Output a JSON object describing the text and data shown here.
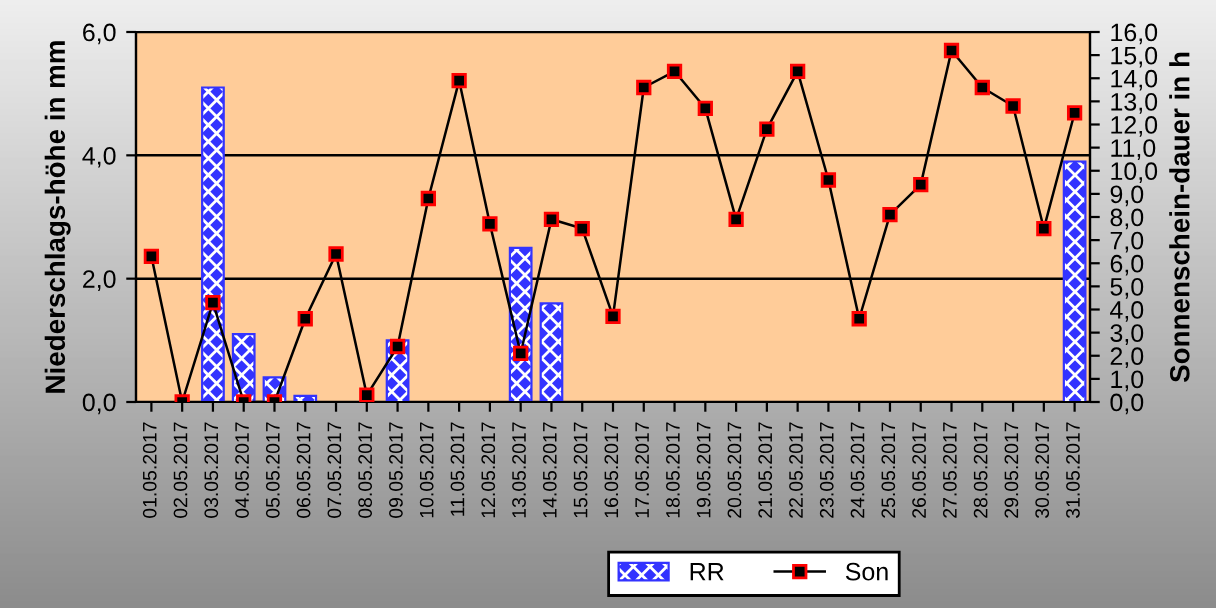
{
  "chart_data": {
    "type": "bar",
    "ylabel": "Niederschlags-höhe in mm",
    "y2label": "Sonnenschein-dauer in h",
    "categories": [
      "01.05.2017",
      "02.05.2017",
      "03.05.2017",
      "04.05.2017",
      "05.05.2017",
      "06.05.2017",
      "07.05.2017",
      "08.05.2017",
      "09.05.2017",
      "10.05.2017",
      "11.05.2017",
      "12.05.2017",
      "13.05.2017",
      "14.05.2017",
      "15.05.2017",
      "16.05.2017",
      "17.05.2017",
      "18.05.2017",
      "19.05.2017",
      "20.05.2017",
      "21.05.2017",
      "22.05.2017",
      "23.05.2017",
      "24.05.2017",
      "25.05.2017",
      "26.05.2017",
      "27.05.2017",
      "28.05.2017",
      "29.05.2017",
      "30.05.2017",
      "31.05.2017"
    ],
    "series": [
      {
        "name": "RR",
        "color": "#3333ff",
        "values": [
          0,
          0,
          5.1,
          1.1,
          0.4,
          0.1,
          0,
          0,
          1.0,
          0,
          0,
          0,
          2.5,
          1.6,
          0,
          0,
          0,
          0,
          0,
          0,
          0,
          0,
          0,
          0,
          0,
          0,
          0,
          0,
          0,
          0,
          3.9
        ]
      },
      {
        "name": "Son",
        "type": "line",
        "axis": "y2",
        "color": "#000000",
        "values": [
          6.3,
          0,
          4.3,
          0,
          0,
          3.6,
          6.4,
          0.3,
          2.4,
          8.8,
          13.9,
          7.7,
          2.1,
          7.9,
          7.5,
          3.7,
          13.6,
          14.3,
          12.7,
          7.9,
          11.8,
          14.3,
          9.6,
          3.6,
          8.1,
          9.4,
          15.2,
          13.6,
          12.8,
          7.5,
          12.5
        ]
      }
    ],
    "ylim": [
      0,
      6
    ],
    "yticks": [
      {
        "value": 0,
        "label": "0,0"
      },
      {
        "value": 2,
        "label": "2,0"
      },
      {
        "value": 4,
        "label": "4,0"
      },
      {
        "value": 6,
        "label": "6,0"
      }
    ],
    "y2lim": [
      0,
      16
    ],
    "y2ticks": [
      {
        "value": 0,
        "label": "0,0"
      },
      {
        "value": 1,
        "label": "1,0"
      },
      {
        "value": 2,
        "label": "2,0"
      },
      {
        "value": 3,
        "label": "3,0"
      },
      {
        "value": 4,
        "label": "4,0"
      },
      {
        "value": 5,
        "label": "5,0"
      },
      {
        "value": 6,
        "label": "6,0"
      },
      {
        "value": 7,
        "label": "7,0"
      },
      {
        "value": 8,
        "label": "8,0"
      },
      {
        "value": 9,
        "label": "9,0"
      },
      {
        "value": 10,
        "label": "10,0"
      },
      {
        "value": 11,
        "label": "11,0"
      },
      {
        "value": 12,
        "label": "12,0"
      },
      {
        "value": 13,
        "label": "13,0"
      },
      {
        "value": 14,
        "label": "14,0"
      },
      {
        "value": 15,
        "label": "15,0"
      },
      {
        "value": 16,
        "label": "16,0"
      }
    ],
    "grid": "y",
    "legend": "bottom",
    "marker": "square"
  }
}
